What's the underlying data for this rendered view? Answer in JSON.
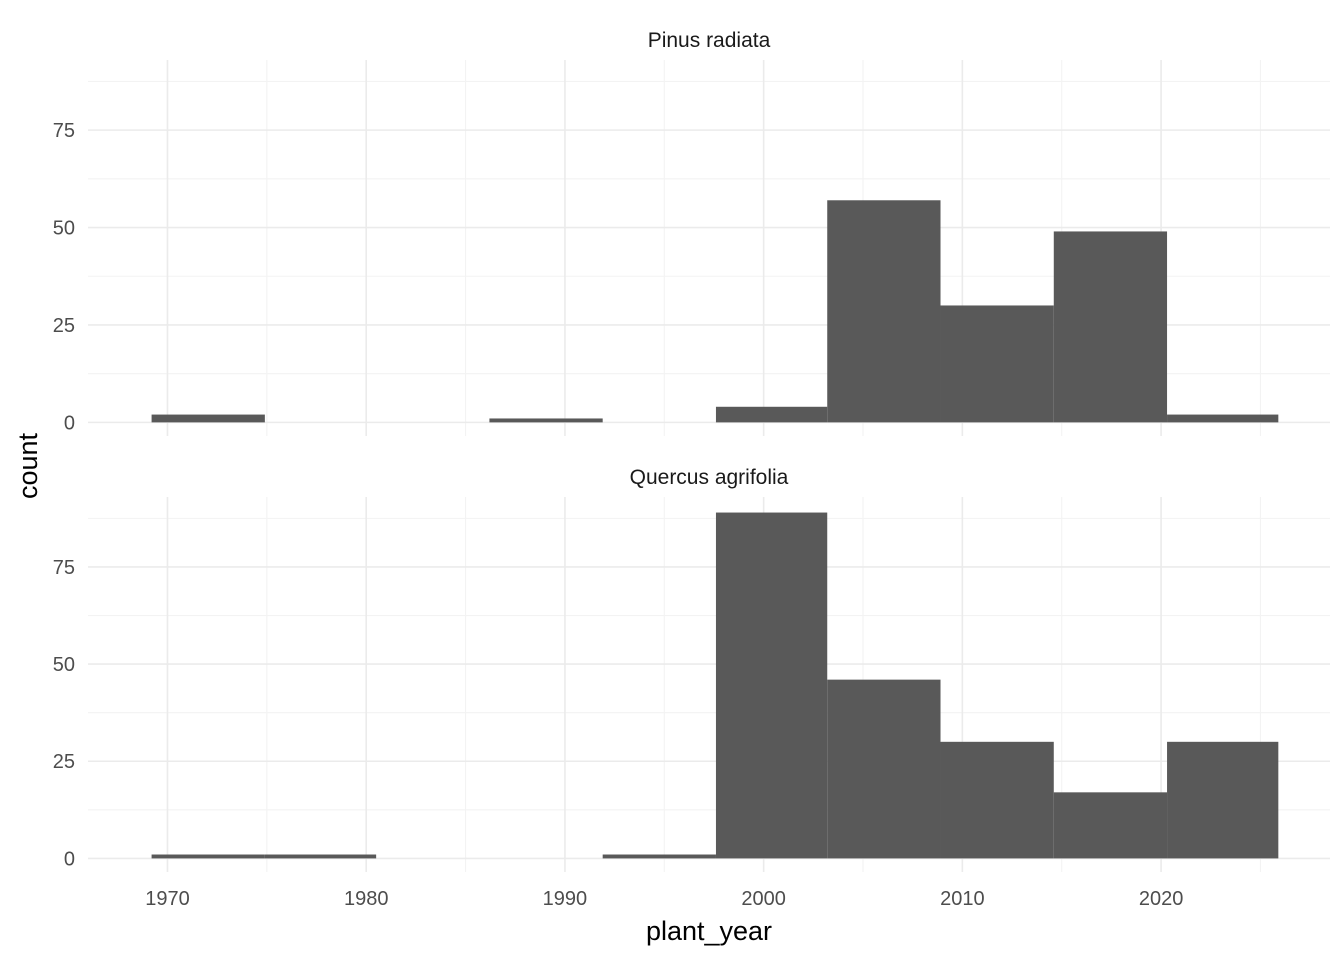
{
  "chart_data": {
    "type": "bar",
    "subtype": "faceted-histogram",
    "xlabel": "plant_year",
    "ylabel": "count",
    "xlim": [
      1966,
      2028.5
    ],
    "ylim": [
      -3.5,
      93
    ],
    "x_ticks": [
      1970,
      1980,
      1990,
      2000,
      2010,
      2020
    ],
    "y_ticks": [
      0,
      25,
      50,
      75
    ],
    "grid": true,
    "bar_color": "#595959",
    "panels": [
      {
        "facet": "Pinus radiata",
        "bins": [
          {
            "x0": 1969.2,
            "x1": 1974.9,
            "count": 2
          },
          {
            "x0": 1974.9,
            "x1": 1980.5,
            "count": 0
          },
          {
            "x0": 1980.5,
            "x1": 1986.2,
            "count": 0
          },
          {
            "x0": 1986.2,
            "x1": 1991.9,
            "count": 1
          },
          {
            "x0": 1991.9,
            "x1": 1997.6,
            "count": 0
          },
          {
            "x0": 1997.6,
            "x1": 2003.2,
            "count": 4
          },
          {
            "x0": 2003.2,
            "x1": 2008.9,
            "count": 57
          },
          {
            "x0": 2008.9,
            "x1": 2014.6,
            "count": 30
          },
          {
            "x0": 2014.6,
            "x1": 2020.3,
            "count": 49
          },
          {
            "x0": 2020.3,
            "x1": 2025.9,
            "count": 2
          }
        ]
      },
      {
        "facet": "Quercus agrifolia",
        "bins": [
          {
            "x0": 1969.2,
            "x1": 1974.9,
            "count": 1
          },
          {
            "x0": 1974.9,
            "x1": 1980.5,
            "count": 1
          },
          {
            "x0": 1980.5,
            "x1": 1986.2,
            "count": 0
          },
          {
            "x0": 1986.2,
            "x1": 1991.9,
            "count": 0
          },
          {
            "x0": 1991.9,
            "x1": 1997.6,
            "count": 1
          },
          {
            "x0": 1997.6,
            "x1": 2003.2,
            "count": 89
          },
          {
            "x0": 2003.2,
            "x1": 2008.9,
            "count": 46
          },
          {
            "x0": 2008.9,
            "x1": 2014.6,
            "count": 30
          },
          {
            "x0": 2014.6,
            "x1": 2020.3,
            "count": 17
          },
          {
            "x0": 2020.3,
            "x1": 2025.9,
            "count": 30
          }
        ]
      }
    ]
  }
}
